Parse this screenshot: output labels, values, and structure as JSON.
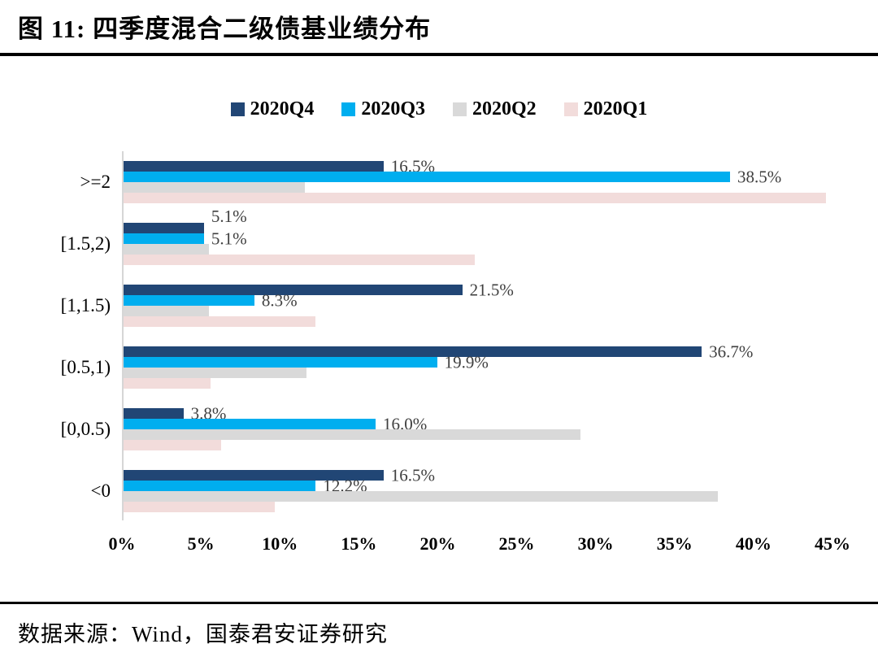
{
  "figure": {
    "title": "图 11:  四季度混合二级债基业绩分布",
    "source": "数据来源：Wind，国泰君安证券研究"
  },
  "chart_data": {
    "type": "bar",
    "orientation": "horizontal",
    "title": "四季度混合二级债基业绩分布",
    "categories": [
      ">=2",
      "[1.5,2)",
      "[1,1.5)",
      "[0.5,1)",
      "[0,0.5)",
      "<0"
    ],
    "series": [
      {
        "name": "2020Q4",
        "color": "#214675",
        "values": [
          16.5,
          5.1,
          21.5,
          36.7,
          3.8,
          16.5
        ],
        "data_labels": [
          "16.5%",
          "5.1%",
          "21.5%",
          "36.7%",
          "3.8%",
          "16.5%"
        ]
      },
      {
        "name": "2020Q3",
        "color": "#00AEEF",
        "values": [
          38.5,
          5.1,
          8.3,
          19.9,
          16.0,
          12.2
        ],
        "data_labels": [
          "38.5%",
          "5.1%",
          "8.3%",
          "19.9%",
          "16.0%",
          "12.2%"
        ]
      },
      {
        "name": "2020Q2",
        "color": "#D9D9D9",
        "values": [
          11.5,
          5.4,
          5.4,
          11.6,
          29.0,
          37.7
        ],
        "data_labels": null
      },
      {
        "name": "2020Q1",
        "color": "#F2DCDB",
        "values": [
          44.6,
          22.3,
          12.2,
          5.5,
          6.2,
          9.6
        ],
        "data_labels": null
      }
    ],
    "xlim": [
      0,
      45
    ],
    "x_ticks": [
      "0%",
      "5%",
      "10%",
      "15%",
      "20%",
      "25%",
      "30%",
      "35%",
      "40%",
      "45%"
    ],
    "legend_position": "top-center",
    "grid": false,
    "axis_line_color": "#D6D6D6",
    "data_label_color": "#3F3F3F"
  }
}
